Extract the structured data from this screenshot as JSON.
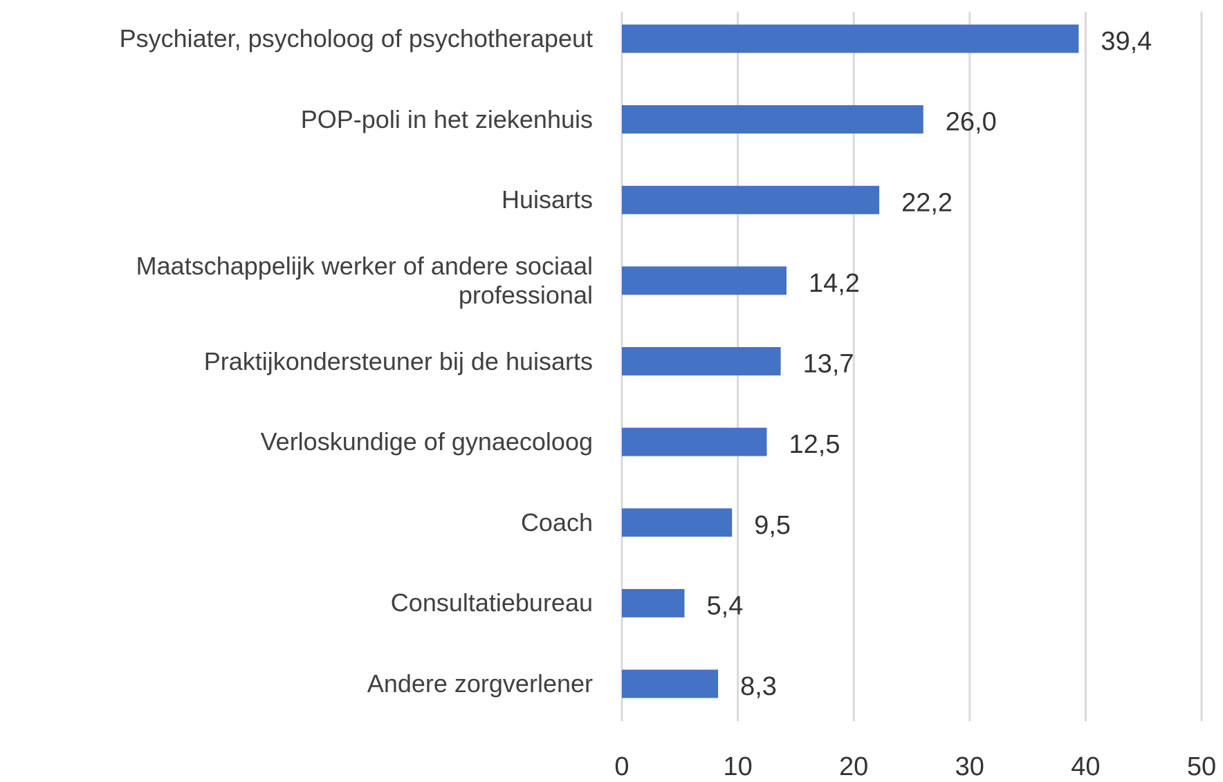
{
  "chart_data": {
    "type": "barh",
    "categories": [
      "Psychiater, psycholoog of psychotherapeut",
      "POP-poli in het ziekenhuis",
      "Huisarts",
      "Maatschappelijk werker of andere sociaal professional",
      "Praktijkondersteuner bij de huisarts",
      "Verloskundige of gynaecoloog",
      "Coach",
      "Consultatiebureau",
      "Andere zorgverlener"
    ],
    "values": [
      39.4,
      26.0,
      22.2,
      14.2,
      13.7,
      12.5,
      9.5,
      5.4,
      8.3
    ],
    "value_labels": [
      "39,4",
      "26,0",
      "22,2",
      "14,2",
      "13,7",
      "12,5",
      "9,5",
      "5,4",
      "8,3"
    ],
    "color": "#4472c4",
    "xlim": [
      0,
      50
    ],
    "xticks": [
      0,
      10,
      20,
      30,
      40,
      50
    ],
    "grid": true
  }
}
